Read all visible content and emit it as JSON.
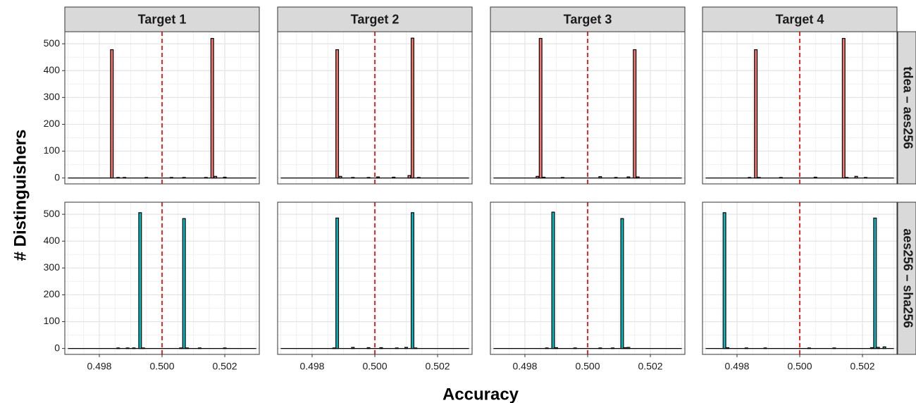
{
  "chart_data": {
    "type": "bar",
    "xlabel": "Accuracy",
    "ylabel": "# Distinguishers",
    "xlim": [
      0.4969,
      0.5031
    ],
    "ylim": [
      -22,
      545
    ],
    "x_ticks": [
      "0.498",
      "0.500",
      "0.502"
    ],
    "x_tick_values": [
      0.498,
      0.5,
      0.502
    ],
    "y_ticks": [
      "0",
      "100",
      "200",
      "300",
      "400",
      "500"
    ],
    "y_tick_values": [
      0,
      100,
      200,
      300,
      400,
      500
    ],
    "grid": true,
    "reference_line": {
      "x": 0.5,
      "color": "#ee1111",
      "style": "dashed"
    },
    "bin_width": 0.0001,
    "columns": [
      {
        "label": "Target  1"
      },
      {
        "label": "Target  2"
      },
      {
        "label": "Target  3"
      },
      {
        "label": "Target  4"
      }
    ],
    "rows": [
      {
        "label": "tdea – aes256",
        "fill": "#f8766d"
      },
      {
        "label": "aes256 – sha256",
        "fill": "#00bfc4"
      }
    ],
    "panels": [
      {
        "row": 0,
        "col": 0,
        "bars": [
          {
            "x": 0.4984,
            "y": 478
          },
          {
            "x": 0.5016,
            "y": 520
          },
          {
            "x": 0.4986,
            "y": 2
          },
          {
            "x": 0.4988,
            "y": 2
          },
          {
            "x": 0.4995,
            "y": 2
          },
          {
            "x": 0.5003,
            "y": 2
          },
          {
            "x": 0.5007,
            "y": 2
          },
          {
            "x": 0.5014,
            "y": 2
          },
          {
            "x": 0.5017,
            "y": 6
          },
          {
            "x": 0.502,
            "y": 3
          }
        ]
      },
      {
        "row": 0,
        "col": 1,
        "bars": [
          {
            "x": 0.4988,
            "y": 478
          },
          {
            "x": 0.5012,
            "y": 521
          },
          {
            "x": 0.4989,
            "y": 6
          },
          {
            "x": 0.4993,
            "y": 2
          },
          {
            "x": 0.4998,
            "y": 2
          },
          {
            "x": 0.5001,
            "y": 4
          },
          {
            "x": 0.5006,
            "y": 3
          },
          {
            "x": 0.5011,
            "y": 9
          },
          {
            "x": 0.5014,
            "y": 2
          }
        ]
      },
      {
        "row": 0,
        "col": 2,
        "bars": [
          {
            "x": 0.4985,
            "y": 520
          },
          {
            "x": 0.5015,
            "y": 478
          },
          {
            "x": 0.4984,
            "y": 6
          },
          {
            "x": 0.4986,
            "y": 3
          },
          {
            "x": 0.4992,
            "y": 2
          },
          {
            "x": 0.5004,
            "y": 5
          },
          {
            "x": 0.5009,
            "y": 2
          },
          {
            "x": 0.5013,
            "y": 4
          },
          {
            "x": 0.5016,
            "y": 4
          }
        ]
      },
      {
        "row": 0,
        "col": 3,
        "bars": [
          {
            "x": 0.4986,
            "y": 478
          },
          {
            "x": 0.5014,
            "y": 520
          },
          {
            "x": 0.4984,
            "y": 2
          },
          {
            "x": 0.4987,
            "y": 2
          },
          {
            "x": 0.4994,
            "y": 2
          },
          {
            "x": 0.5005,
            "y": 3
          },
          {
            "x": 0.5015,
            "y": 2
          },
          {
            "x": 0.5018,
            "y": 6
          },
          {
            "x": 0.5021,
            "y": 2
          }
        ]
      },
      {
        "row": 1,
        "col": 0,
        "bars": [
          {
            "x": 0.4993,
            "y": 506
          },
          {
            "x": 0.5007,
            "y": 484
          },
          {
            "x": 0.4986,
            "y": 2
          },
          {
            "x": 0.4989,
            "y": 2
          },
          {
            "x": 0.4991,
            "y": 2
          },
          {
            "x": 0.4994,
            "y": 2
          },
          {
            "x": 0.5006,
            "y": 2
          },
          {
            "x": 0.5008,
            "y": 2
          },
          {
            "x": 0.5012,
            "y": 2
          },
          {
            "x": 0.502,
            "y": 2
          }
        ]
      },
      {
        "row": 1,
        "col": 1,
        "bars": [
          {
            "x": 0.4988,
            "y": 486
          },
          {
            "x": 0.5012,
            "y": 506
          },
          {
            "x": 0.4987,
            "y": 2
          },
          {
            "x": 0.4993,
            "y": 4
          },
          {
            "x": 0.4998,
            "y": 3
          },
          {
            "x": 0.5002,
            "y": 3
          },
          {
            "x": 0.5007,
            "y": 2
          },
          {
            "x": 0.501,
            "y": 4
          },
          {
            "x": 0.5013,
            "y": 2
          }
        ]
      },
      {
        "row": 1,
        "col": 2,
        "bars": [
          {
            "x": 0.4989,
            "y": 508
          },
          {
            "x": 0.5011,
            "y": 484
          },
          {
            "x": 0.4987,
            "y": 2
          },
          {
            "x": 0.499,
            "y": 3
          },
          {
            "x": 0.4996,
            "y": 2
          },
          {
            "x": 0.5004,
            "y": 2
          },
          {
            "x": 0.5008,
            "y": 2
          },
          {
            "x": 0.5012,
            "y": 3
          },
          {
            "x": 0.5013,
            "y": 4
          }
        ]
      },
      {
        "row": 1,
        "col": 3,
        "bars": [
          {
            "x": 0.4976,
            "y": 506
          },
          {
            "x": 0.5024,
            "y": 486
          },
          {
            "x": 0.4977,
            "y": 3
          },
          {
            "x": 0.4983,
            "y": 2
          },
          {
            "x": 0.4989,
            "y": 2
          },
          {
            "x": 0.5003,
            "y": 2
          },
          {
            "x": 0.5011,
            "y": 2
          },
          {
            "x": 0.5023,
            "y": 3
          },
          {
            "x": 0.5025,
            "y": 4
          },
          {
            "x": 0.5027,
            "y": 6
          }
        ]
      }
    ]
  }
}
